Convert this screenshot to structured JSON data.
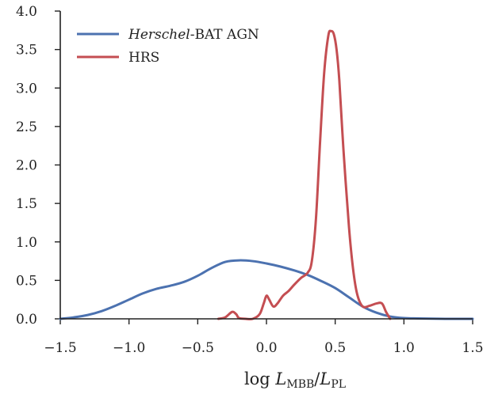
{
  "chart_data": {
    "type": "line",
    "xlabel": "log L_MBB/L_PL",
    "xlabel_parts": {
      "prefix": "log ",
      "num_var": "L",
      "num_sub": "MBB",
      "sep": "/",
      "den_var": "L",
      "den_sub": "PL"
    },
    "ylabel": "",
    "xlim": [
      -1.5,
      1.5
    ],
    "ylim": [
      0.0,
      4.0
    ],
    "x_ticks": [
      -1.5,
      -1.0,
      -0.5,
      0.0,
      0.5,
      1.0,
      1.5
    ],
    "x_tick_labels": [
      "−1.5",
      "−1.0",
      "−0.5",
      "0.0",
      "0.5",
      "1.0",
      "1.5"
    ],
    "y_ticks": [
      0.0,
      0.5,
      1.0,
      1.5,
      2.0,
      2.5,
      3.0,
      3.5,
      4.0
    ],
    "y_tick_labels": [
      "0.0",
      "0.5",
      "1.0",
      "1.5",
      "2.0",
      "2.5",
      "3.0",
      "3.5",
      "4.0"
    ],
    "grid": false,
    "legend_position": "top-left",
    "series": [
      {
        "name": "Herschel-BAT AGN",
        "name_italic": "Herschel",
        "name_rest": "-BAT AGN",
        "color": "#4c72b0",
        "x": [
          -1.5,
          -1.4,
          -1.3,
          -1.2,
          -1.1,
          -1.0,
          -0.9,
          -0.8,
          -0.7,
          -0.6,
          -0.5,
          -0.4,
          -0.3,
          -0.2,
          -0.1,
          0.0,
          0.1,
          0.2,
          0.3,
          0.4,
          0.5,
          0.6,
          0.7,
          0.8,
          0.9,
          1.0,
          1.1,
          1.2,
          1.3,
          1.4,
          1.5
        ],
        "y": [
          0.0,
          0.02,
          0.05,
          0.1,
          0.17,
          0.25,
          0.33,
          0.39,
          0.43,
          0.48,
          0.56,
          0.66,
          0.74,
          0.76,
          0.75,
          0.72,
          0.68,
          0.63,
          0.57,
          0.49,
          0.4,
          0.28,
          0.16,
          0.08,
          0.03,
          0.01,
          0.005,
          0.002,
          0.0,
          0.0,
          0.0
        ]
      },
      {
        "name": "HRS",
        "color": "#c44e52",
        "x": [
          -0.35,
          -0.3,
          -0.25,
          -0.22,
          -0.2,
          -0.15,
          -0.1,
          -0.05,
          -0.02,
          0.0,
          0.02,
          0.05,
          0.08,
          0.12,
          0.16,
          0.2,
          0.25,
          0.3,
          0.33,
          0.36,
          0.39,
          0.42,
          0.45,
          0.47,
          0.49,
          0.51,
          0.53,
          0.56,
          0.6,
          0.63,
          0.66,
          0.7,
          0.75,
          0.8,
          0.84,
          0.87,
          0.9
        ],
        "y": [
          0.0,
          0.02,
          0.09,
          0.06,
          0.01,
          0.0,
          0.0,
          0.06,
          0.2,
          0.3,
          0.25,
          0.16,
          0.2,
          0.3,
          0.36,
          0.44,
          0.53,
          0.6,
          0.75,
          1.3,
          2.3,
          3.2,
          3.68,
          3.74,
          3.7,
          3.5,
          3.1,
          2.2,
          1.2,
          0.65,
          0.32,
          0.16,
          0.17,
          0.2,
          0.2,
          0.09,
          0.0
        ]
      }
    ]
  }
}
